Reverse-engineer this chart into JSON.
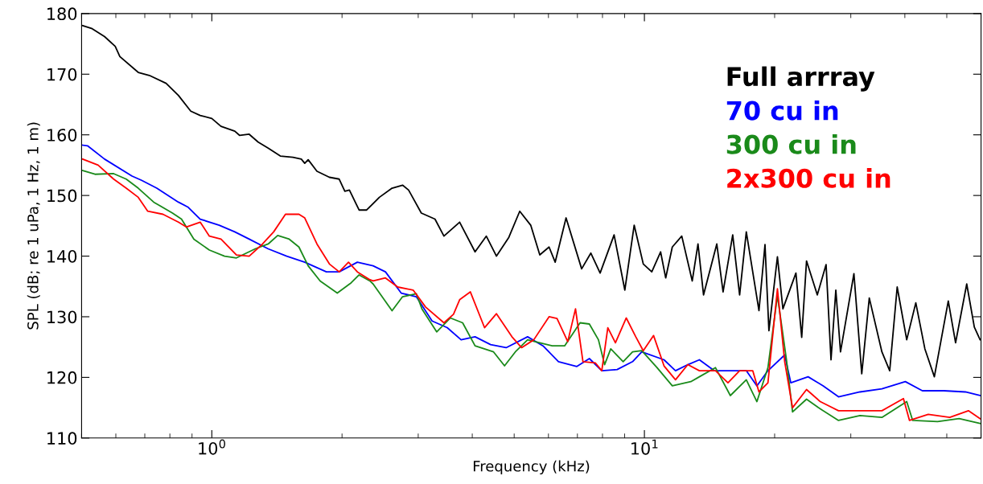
{
  "chart_data": {
    "type": "line",
    "xlabel": "Frequency (kHz)",
    "ylabel": "SPL (dB; re 1 uPa, 1 Hz, 1 m)",
    "log": "x",
    "xlim": [
      0.5,
      60
    ],
    "ylim": [
      110,
      180
    ],
    "xticks": [
      {
        "value": 1,
        "label": "10$^{0}$"
      },
      {
        "value": 10,
        "label": "10$^{1}$"
      }
    ],
    "yticks": [
      110,
      120,
      130,
      140,
      150,
      160,
      170,
      180
    ],
    "grid": false,
    "legend": "top right",
    "marker": "none",
    "line_style": "solid",
    "series": [
      {
        "name": "Full arrray",
        "color": "#000000",
        "x": [
          0.503,
          0.529,
          0.565,
          0.598,
          0.613,
          0.676,
          0.717,
          0.784,
          0.837,
          0.894,
          0.94,
          1.0,
          1.05,
          1.13,
          1.16,
          1.22,
          1.28,
          1.35,
          1.44,
          1.54,
          1.61,
          1.64,
          1.67,
          1.75,
          1.87,
          1.97,
          2.03,
          2.08,
          2.19,
          2.28,
          2.44,
          2.61,
          2.76,
          2.85,
          3.05,
          3.28,
          3.44,
          3.74,
          4.06,
          4.31,
          4.55,
          4.86,
          5.15,
          5.46,
          5.73,
          6.02,
          6.22,
          6.59,
          7.16,
          7.52,
          7.9,
          8.51,
          9.01,
          9.47,
          9.94,
          10.4,
          10.9,
          11.2,
          11.6,
          12.2,
          12.9,
          13.3,
          13.7,
          14.7,
          15.2,
          16.0,
          16.6,
          17.2,
          18.4,
          19.0,
          19.4,
          20.3,
          20.9,
          22.4,
          23.1,
          23.7,
          25.1,
          26.3,
          27.0,
          27.7,
          28.4,
          30.5,
          31.8,
          33.1,
          35.4,
          36.9,
          38.4,
          40.4,
          42.4,
          44.5,
          46.8,
          50.4,
          52.4,
          55.6,
          57.9,
          59.7
        ],
        "values": [
          178.0,
          177.5,
          176.2,
          174.6,
          172.9,
          170.3,
          169.8,
          168.5,
          166.5,
          163.9,
          163.2,
          162.7,
          161.4,
          160.6,
          159.9,
          160.1,
          158.8,
          157.8,
          156.5,
          156.3,
          156.0,
          155.3,
          155.9,
          154.0,
          153.0,
          152.7,
          150.7,
          150.9,
          147.6,
          147.6,
          149.7,
          151.2,
          151.7,
          150.9,
          147.1,
          146.1,
          143.3,
          145.6,
          140.7,
          143.3,
          140.0,
          143.1,
          147.4,
          145.1,
          140.2,
          141.5,
          139.0,
          146.3,
          137.9,
          140.5,
          137.2,
          143.5,
          134.4,
          145.1,
          138.7,
          137.4,
          140.7,
          136.4,
          141.5,
          143.3,
          135.9,
          142.0,
          133.6,
          142.0,
          134.1,
          143.5,
          133.6,
          144.0,
          131.0,
          141.9,
          127.7,
          139.9,
          131.3,
          137.2,
          126.6,
          139.2,
          133.6,
          138.6,
          122.9,
          134.4,
          124.2,
          137.1,
          120.6,
          133.1,
          124.2,
          121.1,
          134.9,
          126.2,
          132.3,
          124.7,
          120.1,
          132.6,
          125.7,
          135.4,
          128.3,
          126.2
        ]
      },
      {
        "name": "70 cu in",
        "color": "#0000ff",
        "x": [
          0.503,
          0.516,
          0.565,
          0.654,
          0.688,
          0.746,
          0.837,
          0.88,
          0.94,
          1.04,
          1.13,
          1.22,
          1.35,
          1.49,
          1.64,
          1.84,
          1.97,
          2.17,
          2.36,
          2.52,
          2.74,
          2.97,
          3.23,
          3.5,
          3.77,
          4.06,
          4.41,
          4.79,
          5.37,
          5.83,
          6.33,
          6.98,
          7.46,
          7.97,
          8.65,
          9.39,
          9.86,
          11.1,
          11.8,
          12.6,
          13.4,
          14.5,
          15.8,
          17.2,
          18.2,
          19.3,
          21.1,
          21.8,
          23.9,
          25.9,
          28.1,
          31.5,
          35.4,
          40.1,
          43.9,
          49.2,
          55.2,
          59.7
        ],
        "values": [
          158.3,
          158.2,
          156.0,
          153.2,
          152.5,
          151.2,
          148.9,
          148.1,
          146.1,
          145.1,
          144.0,
          142.8,
          141.2,
          140.0,
          139.0,
          137.4,
          137.4,
          139.0,
          138.4,
          137.4,
          133.9,
          133.3,
          129.3,
          128.2,
          126.2,
          126.7,
          125.4,
          124.9,
          126.7,
          125.2,
          122.6,
          121.8,
          123.1,
          121.1,
          121.3,
          122.6,
          124.2,
          122.9,
          121.1,
          122.1,
          122.9,
          121.1,
          121.1,
          121.1,
          118.6,
          121.1,
          123.7,
          119.1,
          120.1,
          118.6,
          116.8,
          117.6,
          118.1,
          119.3,
          117.8,
          117.8,
          117.6,
          117.0
        ]
      },
      {
        "name": "300 cu in",
        "color": "#1a8a1a",
        "x": [
          0.503,
          0.537,
          0.593,
          0.634,
          0.676,
          0.734,
          0.811,
          0.851,
          0.909,
          0.987,
          1.07,
          1.14,
          1.26,
          1.35,
          1.42,
          1.51,
          1.59,
          1.67,
          1.78,
          1.95,
          2.1,
          2.19,
          2.32,
          2.36,
          2.61,
          2.76,
          2.97,
          3.06,
          3.31,
          3.56,
          3.8,
          4.06,
          4.48,
          4.75,
          5.03,
          5.37,
          5.73,
          6.12,
          6.54,
          7.1,
          7.46,
          7.83,
          8.09,
          8.36,
          8.93,
          9.39,
          9.86,
          10.7,
          11.6,
          12.8,
          13.4,
          14.6,
          15.8,
          17.2,
          18.2,
          19.3,
          20.3,
          21.3,
          22.0,
          23.7,
          25.5,
          28.1,
          31.5,
          35.4,
          40.4,
          41.7,
          47.6,
          53.4,
          59.7
        ],
        "values": [
          154.1,
          153.5,
          153.6,
          152.7,
          151.2,
          148.9,
          147.1,
          146.1,
          142.8,
          141.0,
          140.0,
          139.7,
          141.2,
          142.0,
          143.4,
          142.8,
          141.5,
          138.4,
          135.9,
          133.9,
          135.6,
          136.9,
          135.9,
          135.4,
          131.0,
          133.3,
          133.8,
          131.3,
          127.5,
          129.8,
          129.0,
          125.2,
          124.2,
          121.9,
          124.2,
          126.2,
          125.7,
          125.2,
          125.2,
          129.0,
          128.8,
          126.2,
          122.1,
          124.7,
          122.6,
          124.2,
          124.4,
          121.6,
          118.6,
          119.3,
          120.1,
          121.6,
          117.0,
          119.6,
          116.0,
          121.6,
          133.5,
          122.9,
          114.3,
          116.4,
          114.8,
          112.9,
          113.7,
          113.4,
          116.0,
          112.9,
          112.7,
          113.2,
          112.4
        ]
      },
      {
        "name": "2x300 cu in",
        "color": "#ff0000",
        "x": [
          0.503,
          0.546,
          0.593,
          0.634,
          0.676,
          0.711,
          0.771,
          0.837,
          0.873,
          0.94,
          0.987,
          1.05,
          1.14,
          1.22,
          1.31,
          1.39,
          1.48,
          1.59,
          1.64,
          1.75,
          1.87,
          1.97,
          2.07,
          2.17,
          2.32,
          2.36,
          2.52,
          2.69,
          2.92,
          3.12,
          3.44,
          3.62,
          3.74,
          3.96,
          4.27,
          4.55,
          4.94,
          5.2,
          5.55,
          6.02,
          6.28,
          6.65,
          6.93,
          7.21,
          7.7,
          7.97,
          8.23,
          8.57,
          9.08,
          9.55,
          9.94,
          10.5,
          11.1,
          11.8,
          12.6,
          13.4,
          14.6,
          15.6,
          16.6,
          17.8,
          18.4,
          19.3,
          20.3,
          21.1,
          22.0,
          23.7,
          25.5,
          28.1,
          31.5,
          35.4,
          39.7,
          41.0,
          45.3,
          50.8,
          56.1,
          59.7
        ],
        "values": [
          156.0,
          155.0,
          152.7,
          151.2,
          149.7,
          147.4,
          146.9,
          145.6,
          144.8,
          145.6,
          143.3,
          142.8,
          140.2,
          140.0,
          142.0,
          144.0,
          146.9,
          146.9,
          146.3,
          142.0,
          138.7,
          137.4,
          139.0,
          137.4,
          136.1,
          135.9,
          136.4,
          134.9,
          134.4,
          131.6,
          129.0,
          130.4,
          132.8,
          134.1,
          128.2,
          130.5,
          126.7,
          124.9,
          126.2,
          130.0,
          129.7,
          125.9,
          131.3,
          122.6,
          122.4,
          121.1,
          128.2,
          125.7,
          129.8,
          126.7,
          124.4,
          126.9,
          121.9,
          119.6,
          122.1,
          121.1,
          121.1,
          119.1,
          121.1,
          121.1,
          117.6,
          119.1,
          134.6,
          122.6,
          115.0,
          118.0,
          116.0,
          114.5,
          114.5,
          114.5,
          116.5,
          112.9,
          113.9,
          113.4,
          114.5,
          113.2
        ]
      }
    ]
  }
}
